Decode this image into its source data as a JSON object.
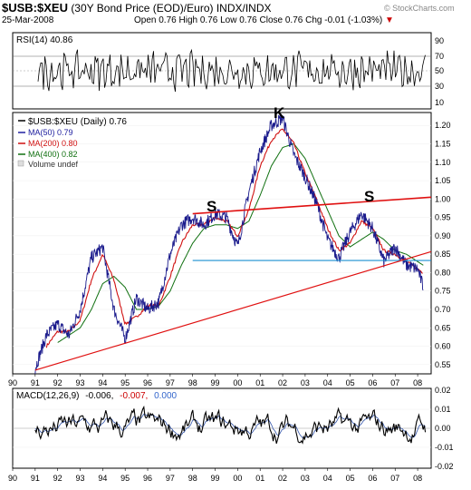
{
  "header": {
    "symbol": "$USB:$XEU",
    "description": "(30Y Bond Price (EOD)/Euro)",
    "exchange": "INDX/INDX",
    "site": "© StockCharts.com",
    "date": "25-Mar-2008",
    "open_label": "Open",
    "open": "0.76",
    "high_label": "High",
    "high": "0.76",
    "low_label": "Low",
    "low": "0.76",
    "close_label": "Close",
    "close": "0.76",
    "chg_label": "Chg",
    "chg": "-0.01 (-1.03%)",
    "down_arrow": "▼"
  },
  "rsi": {
    "label": "RSI(14) 40.86",
    "ticks": [
      "90",
      "70",
      "50",
      "30",
      "10"
    ]
  },
  "legend": {
    "main": "$USB:$XEU (Daily) 0.76",
    "ma50": "MA(50) 0.79",
    "ma200": "MA(200) 0.80",
    "ma400": "MA(400) 0.82",
    "volume": "Volume undef"
  },
  "annotations": {
    "left_shoulder": "S",
    "head": "K",
    "right_shoulder": "S"
  },
  "macd": {
    "label_prefix": "MACD(12,26,9)",
    "macd_value": "-0.006,",
    "signal_value": "-0.007,",
    "hist_value": "0.000",
    "ticks": [
      "0.02",
      "0.01",
      "0.00",
      "-0.01",
      "-0.02"
    ]
  },
  "colors": {
    "price": "#1a1a8c",
    "ma50": "#2020a0",
    "ma200": "#d01010",
    "ma400": "#107010",
    "neckline": "#1a8fd0",
    "trendline": "#e01010",
    "macd_line": "#000000",
    "signal_line": "#3355aa"
  },
  "chart_data": [
    {
      "type": "line",
      "name": "price-panel",
      "x_ticks": [
        "90",
        "91",
        "92",
        "93",
        "94",
        "95",
        "96",
        "97",
        "98",
        "99",
        "00",
        "01",
        "02",
        "03",
        "04",
        "05",
        "06",
        "07",
        "08"
      ],
      "y_ticks": [
        "1.20",
        "1.15",
        "1.10",
        "1.05",
        "1.00",
        "0.95",
        "0.90",
        "0.85",
        "0.80",
        "0.75",
        "0.70",
        "0.65",
        "0.60",
        "0.55"
      ],
      "ylim": [
        0.525,
        1.235
      ],
      "xlim": [
        1990.0,
        2008.6
      ],
      "series": [
        {
          "name": "$USB:$XEU",
          "x": [
            1991.0,
            1991.5,
            1992.0,
            1992.5,
            1993.0,
            1993.5,
            1994.0,
            1994.5,
            1995.0,
            1995.5,
            1996.0,
            1996.5,
            1997.0,
            1997.5,
            1998.0,
            1998.5,
            1999.0,
            1999.5,
            2000.0,
            2000.5,
            2001.0,
            2001.5,
            2002.0,
            2002.5,
            2003.0,
            2003.5,
            2004.0,
            2004.5,
            2005.0,
            2005.5,
            2006.0,
            2006.5,
            2007.0,
            2007.5,
            2008.0,
            2008.25
          ],
          "values": [
            0.54,
            0.63,
            0.66,
            0.63,
            0.7,
            0.84,
            0.87,
            0.7,
            0.62,
            0.73,
            0.7,
            0.72,
            0.85,
            0.93,
            0.95,
            0.93,
            0.96,
            0.95,
            0.87,
            1.02,
            1.13,
            1.2,
            1.22,
            1.12,
            1.06,
            0.99,
            0.89,
            0.84,
            0.91,
            0.96,
            0.92,
            0.83,
            0.87,
            0.82,
            0.81,
            0.76
          ]
        },
        {
          "name": "MA(200)",
          "x": [
            1991.5,
            1992.0,
            1992.5,
            1993.0,
            1993.5,
            1994.0,
            1994.5,
            1995.0,
            1995.5,
            1996.0,
            1996.5,
            1997.0,
            1997.5,
            1998.0,
            1998.5,
            1999.0,
            1999.5,
            2000.0,
            2000.5,
            2001.0,
            2001.5,
            2002.0,
            2002.5,
            2003.0,
            2003.5,
            2004.0,
            2004.5,
            2005.0,
            2005.5,
            2006.0,
            2006.5,
            2007.0,
            2007.5,
            2008.0,
            2008.25
          ],
          "values": [
            0.6,
            0.64,
            0.64,
            0.67,
            0.78,
            0.85,
            0.78,
            0.66,
            0.68,
            0.71,
            0.71,
            0.79,
            0.88,
            0.93,
            0.93,
            0.95,
            0.94,
            0.9,
            0.97,
            1.09,
            1.16,
            1.19,
            1.15,
            1.07,
            1.0,
            0.92,
            0.86,
            0.88,
            0.94,
            0.92,
            0.86,
            0.85,
            0.83,
            0.81,
            0.8
          ]
        },
        {
          "name": "MA(400)",
          "x": [
            1992.0,
            1992.5,
            1993.0,
            1993.5,
            1994.0,
            1994.5,
            1995.0,
            1995.5,
            1996.0,
            1996.5,
            1997.0,
            1997.5,
            1998.0,
            1998.5,
            1999.0,
            1999.5,
            2000.0,
            2000.5,
            2001.0,
            2001.5,
            2002.0,
            2002.5,
            2003.0,
            2003.5,
            2004.0,
            2004.5,
            2005.0,
            2005.5,
            2006.0,
            2006.5,
            2007.0,
            2007.5,
            2008.0,
            2008.25
          ],
          "values": [
            0.61,
            0.63,
            0.65,
            0.7,
            0.77,
            0.79,
            0.76,
            0.7,
            0.7,
            0.71,
            0.75,
            0.82,
            0.88,
            0.92,
            0.93,
            0.93,
            0.92,
            0.94,
            1.01,
            1.09,
            1.14,
            1.15,
            1.11,
            1.04,
            0.97,
            0.9,
            0.87,
            0.89,
            0.91,
            0.89,
            0.86,
            0.85,
            0.83,
            0.82
          ]
        }
      ],
      "lines": [
        {
          "name": "left-shoulder-to-right-shoulder line",
          "x": [
            1998.0,
            2008.6
          ],
          "values": [
            0.96,
            1.005
          ]
        },
        {
          "name": "neckline",
          "x": [
            1998.0,
            2008.6
          ],
          "values": [
            0.833,
            0.833
          ]
        },
        {
          "name": "long-term trendline",
          "x": [
            1991.0,
            2008.6
          ],
          "values": [
            0.535,
            0.857
          ]
        }
      ]
    },
    {
      "type": "line",
      "name": "macd-panel",
      "x_ticks": [
        "90",
        "91",
        "92",
        "93",
        "94",
        "95",
        "96",
        "97",
        "98",
        "99",
        "00",
        "01",
        "02",
        "03",
        "04",
        "05",
        "06",
        "07",
        "08"
      ],
      "y_ticks": [
        "0.02",
        "0.01",
        "0.00",
        "-0.01",
        "-0.02"
      ],
      "ylim": [
        -0.021,
        0.021
      ],
      "xlim": [
        1990.0,
        2008.6
      ]
    }
  ]
}
